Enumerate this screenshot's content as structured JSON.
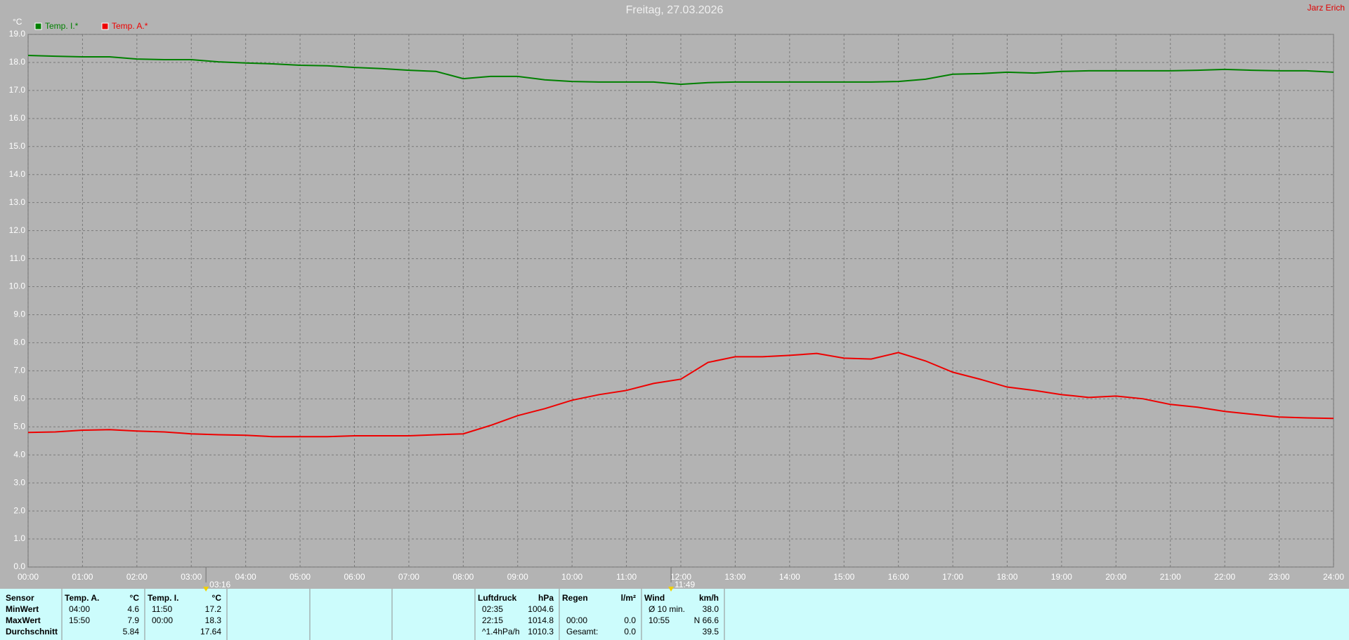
{
  "header": {
    "author": "Jarz Erich"
  },
  "chart_data": {
    "type": "line",
    "title": "Freitag, 27.03.2026",
    "y_label": "°C",
    "x": [
      0,
      0.5,
      1,
      1.5,
      2,
      2.5,
      3,
      3.5,
      4,
      4.5,
      5,
      5.5,
      6,
      6.5,
      7,
      7.5,
      8,
      8.5,
      9,
      9.5,
      10,
      10.5,
      11,
      11.5,
      12,
      12.5,
      13,
      13.5,
      14,
      14.5,
      15,
      15.5,
      16,
      16.5,
      17,
      17.5,
      18,
      18.5,
      19,
      19.5,
      20,
      20.5,
      21,
      21.5,
      22,
      22.5,
      23,
      23.5,
      24
    ],
    "series": [
      {
        "name": "Temp. I.*",
        "color": "#008000",
        "values": [
          18.25,
          18.22,
          18.2,
          18.2,
          18.12,
          18.1,
          18.1,
          18.02,
          17.98,
          17.95,
          17.9,
          17.88,
          17.82,
          17.78,
          17.72,
          17.68,
          17.42,
          17.5,
          17.5,
          17.38,
          17.32,
          17.3,
          17.3,
          17.3,
          17.22,
          17.28,
          17.3,
          17.3,
          17.3,
          17.3,
          17.3,
          17.3,
          17.32,
          17.4,
          17.58,
          17.6,
          17.65,
          17.62,
          17.68,
          17.7,
          17.7,
          17.7,
          17.7,
          17.72,
          17.75,
          17.72,
          17.7,
          17.7,
          17.65
        ]
      },
      {
        "name": "Temp. A.*",
        "color": "#ee0000",
        "values": [
          4.8,
          4.82,
          4.88,
          4.9,
          4.85,
          4.82,
          4.75,
          4.72,
          4.7,
          4.65,
          4.65,
          4.65,
          4.68,
          4.68,
          4.68,
          4.72,
          4.75,
          5.05,
          5.4,
          5.65,
          5.95,
          6.15,
          6.3,
          6.55,
          6.7,
          7.3,
          7.5,
          7.5,
          7.55,
          7.62,
          7.45,
          7.42,
          7.65,
          7.35,
          6.95,
          6.7,
          6.42,
          6.3,
          6.15,
          6.05,
          6.1,
          6.0,
          5.8,
          5.7,
          5.55,
          5.45,
          5.35,
          5.32,
          5.3
        ]
      }
    ],
    "xlim": [
      0,
      24
    ],
    "xticks": [
      {
        "value": 0,
        "label": "00:00"
      },
      {
        "value": 1,
        "label": "01:00"
      },
      {
        "value": 2,
        "label": "02:00"
      },
      {
        "value": 3,
        "label": "03:00"
      },
      {
        "value": 4,
        "label": "04:00"
      },
      {
        "value": 5,
        "label": "05:00"
      },
      {
        "value": 6,
        "label": "06:00"
      },
      {
        "value": 7,
        "label": "07:00"
      },
      {
        "value": 8,
        "label": "08:00"
      },
      {
        "value": 9,
        "label": "09:00"
      },
      {
        "value": 10,
        "label": "10:00"
      },
      {
        "value": 11,
        "label": "11:00"
      },
      {
        "value": 12,
        "label": "12:00"
      },
      {
        "value": 13,
        "label": "13:00"
      },
      {
        "value": 14,
        "label": "14:00"
      },
      {
        "value": 15,
        "label": "15:00"
      },
      {
        "value": 16,
        "label": "16:00"
      },
      {
        "value": 17,
        "label": "17:00"
      },
      {
        "value": 18,
        "label": "18:00"
      },
      {
        "value": 19,
        "label": "19:00"
      },
      {
        "value": 20,
        "label": "20:00"
      },
      {
        "value": 21,
        "label": "21:00"
      },
      {
        "value": 22,
        "label": "22:00"
      },
      {
        "value": 23,
        "label": "23:00"
      },
      {
        "value": 24,
        "label": "24:00"
      }
    ],
    "ylim": [
      0,
      19
    ],
    "yticks": [
      {
        "value": 0,
        "label": "0.0"
      },
      {
        "value": 1,
        "label": "1.0"
      },
      {
        "value": 2,
        "label": "2.0"
      },
      {
        "value": 3,
        "label": "3.0"
      },
      {
        "value": 4,
        "label": "4.0"
      },
      {
        "value": 5,
        "label": "5.0"
      },
      {
        "value": 6,
        "label": "6.0"
      },
      {
        "value": 7,
        "label": "7.0"
      },
      {
        "value": 8,
        "label": "8.0"
      },
      {
        "value": 9,
        "label": "9.0"
      },
      {
        "value": 10,
        "label": "10.0"
      },
      {
        "value": 11,
        "label": "11.0"
      },
      {
        "value": 12,
        "label": "12.0"
      },
      {
        "value": 13,
        "label": "13.0"
      },
      {
        "value": 14,
        "label": "14.0"
      },
      {
        "value": 15,
        "label": "15.0"
      },
      {
        "value": 16,
        "label": "16.0"
      },
      {
        "value": 17,
        "label": "17.0"
      },
      {
        "value": 18,
        "label": "18.0"
      },
      {
        "value": 19,
        "label": "19.0"
      }
    ],
    "grid": true,
    "legend": "top-left",
    "annotations": [
      {
        "x": 3.27,
        "label": "03:16"
      },
      {
        "x": 11.82,
        "label": "11:49"
      }
    ]
  },
  "table": {
    "panels": [
      {
        "header": [
          "Sensor"
        ],
        "rows": [
          [
            "MinWert"
          ],
          [
            "MaxWert"
          ],
          [
            "Durchschnitt"
          ]
        ]
      },
      {
        "header": [
          "Temp. A.",
          "°C"
        ],
        "rows": [
          [
            "04:00",
            "4.6"
          ],
          [
            "15:50",
            "7.9"
          ],
          [
            null,
            "5.84"
          ]
        ]
      },
      {
        "header": [
          "Temp. I.",
          "°C"
        ],
        "rows": [
          [
            "11:50",
            "17.2"
          ],
          [
            "00:00",
            "18.3"
          ],
          [
            null,
            "17.64"
          ]
        ]
      },
      {
        "header": [
          "Luftdruck",
          "hPa"
        ],
        "rows": [
          [
            "02:35",
            "1004.6"
          ],
          [
            "22:15",
            "1014.8"
          ],
          [
            "^1.4hPa/h",
            "1010.3"
          ]
        ]
      },
      {
        "header": [
          "Regen",
          "l/m²"
        ],
        "rows": [
          [
            null,
            null
          ],
          [
            "00:00",
            "0.0"
          ],
          [
            "Gesamt:",
            "0.0"
          ]
        ]
      },
      {
        "header": [
          "Wind",
          "km/h"
        ],
        "rows": [
          [
            "Ø 10 min.",
            "38.0"
          ],
          [
            "10:55",
            "N 66.6"
          ],
          [
            null,
            "39.5"
          ]
        ]
      }
    ]
  }
}
